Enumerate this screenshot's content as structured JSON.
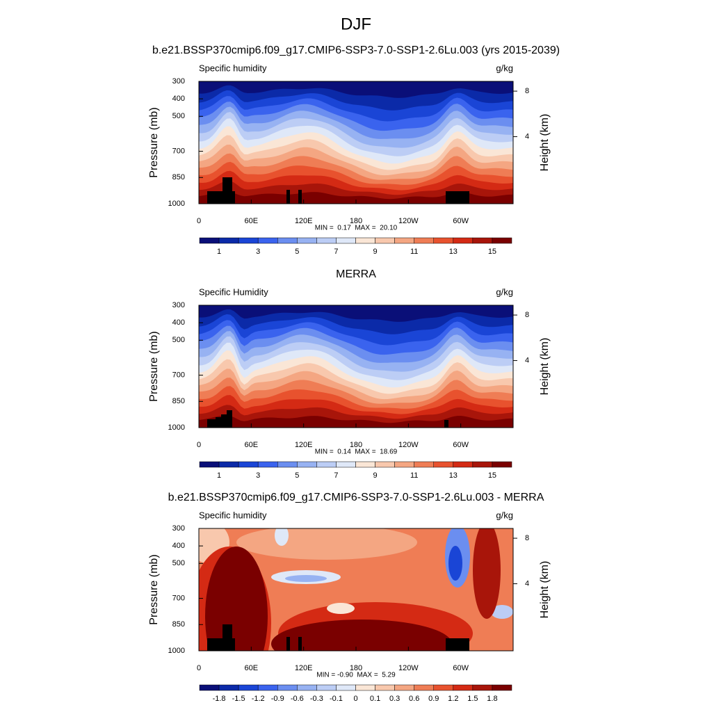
{
  "title": "DJF",
  "chart_data": [
    {
      "type": "contour",
      "title": "b.e21.BSSP370cmip6.f09_g17.CMIP6-SSP3-7.0-SSP1-2.6Lu.003 (yrs 2015-2039)",
      "left_label": "Specific humidity",
      "right_label": "g/kg",
      "y_label": "Pressure (mb)",
      "y2_label": "Height (km)",
      "xlim": [
        0,
        360
      ],
      "xticks": [
        0,
        {
          "value": 60,
          "label": "60E"
        },
        {
          "value": 120,
          "label": "120E"
        },
        180,
        {
          "value": 240,
          "label": "120W"
        },
        {
          "value": 300,
          "label": "60W"
        }
      ],
      "ylim": [
        1000,
        300
      ],
      "yticks": [
        300,
        400,
        500,
        700,
        850,
        1000
      ],
      "y2ticks": [
        4,
        8
      ],
      "stats": "MIN =  0.17  MAX =  20.10",
      "colorbar": {
        "colors": [
          "#0a0f78",
          "#0b2aa8",
          "#1a45d6",
          "#3a63ee",
          "#6b8ef0",
          "#97b2f2",
          "#bccdf5",
          "#dfe8f8",
          "#fae6d6",
          "#f8c8ad",
          "#f4a682",
          "#ef7d55",
          "#e8522e",
          "#d42a14",
          "#a8150a",
          "#7a0000"
        ],
        "labels": [
          1,
          3,
          5,
          7,
          9,
          11,
          13,
          15
        ],
        "label_stride": 2
      }
    },
    {
      "type": "contour",
      "title": "MERRA",
      "left_label": "Specific Humidity",
      "right_label": "g/kg",
      "y_label": "Pressure (mb)",
      "y2_label": "Height (km)",
      "xlim": [
        0,
        360
      ],
      "xticks": [
        0,
        {
          "value": 60,
          "label": "60E"
        },
        {
          "value": 120,
          "label": "120E"
        },
        180,
        {
          "value": 240,
          "label": "120W"
        },
        {
          "value": 300,
          "label": "60W"
        }
      ],
      "ylim": [
        1000,
        300
      ],
      "yticks": [
        300,
        400,
        500,
        700,
        850,
        1000
      ],
      "y2ticks": [
        4,
        8
      ],
      "stats": "MIN =  0.14  MAX =  18.69",
      "colorbar": {
        "colors": [
          "#0a0f78",
          "#0b2aa8",
          "#1a45d6",
          "#3a63ee",
          "#6b8ef0",
          "#97b2f2",
          "#bccdf5",
          "#dfe8f8",
          "#fae6d6",
          "#f8c8ad",
          "#f4a682",
          "#ef7d55",
          "#e8522e",
          "#d42a14",
          "#a8150a",
          "#7a0000"
        ],
        "labels": [
          1,
          3,
          5,
          7,
          9,
          11,
          13,
          15
        ],
        "label_stride": 2
      }
    },
    {
      "type": "contour",
      "title": "b.e21.BSSP370cmip6.f09_g17.CMIP6-SSP3-7.0-SSP1-2.6Lu.003 - MERRA",
      "left_label": "Specific humidity",
      "right_label": "g/kg",
      "y_label": "Pressure (mb)",
      "y2_label": "Height (km)",
      "xlim": [
        0,
        360
      ],
      "xticks": [
        0,
        {
          "value": 60,
          "label": "60E"
        },
        {
          "value": 120,
          "label": "120E"
        },
        180,
        {
          "value": 240,
          "label": "120W"
        },
        {
          "value": 300,
          "label": "60W"
        }
      ],
      "ylim": [
        1000,
        300
      ],
      "yticks": [
        300,
        400,
        500,
        700,
        850,
        1000
      ],
      "y2ticks": [
        4,
        8
      ],
      "stats": "MIN = -0.90  MAX =  5.29",
      "colorbar": {
        "colors": [
          "#0a0f78",
          "#0b2aa8",
          "#1a45d6",
          "#3a63ee",
          "#6b8ef0",
          "#97b2f2",
          "#bccdf5",
          "#dfe8f8",
          "#fae6d6",
          "#f8c8ad",
          "#f4a682",
          "#ef7d55",
          "#e8522e",
          "#d42a14",
          "#a8150a",
          "#7a0000"
        ],
        "labels": [
          -1.8,
          -1.5,
          -1.2,
          -0.9,
          -0.6,
          -0.3,
          -0.1,
          0,
          0.1,
          0.3,
          0.6,
          0.9,
          1.2,
          1.5,
          1.8
        ],
        "label_stride": 1
      }
    }
  ]
}
